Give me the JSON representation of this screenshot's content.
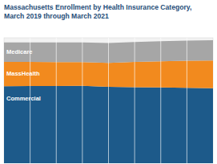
{
  "chart_data": {
    "type": "area",
    "title": "Massachusetts Enrollment by Health Insurance Category, March 2019 through March 2021",
    "stacked": true,
    "grid": true,
    "tick_labels": false,
    "categories": [
      null,
      null,
      null,
      null,
      null,
      null,
      null,
      null,
      null
    ],
    "ylim": [
      0,
      7.2
    ],
    "series": [
      {
        "name": "Commercial",
        "color": "#1d5a8a",
        "values": [
          4.42,
          4.43,
          4.43,
          4.44,
          4.38,
          4.36,
          4.35,
          4.33,
          4.3
        ]
      },
      {
        "name": "MassHealth",
        "color": "#f28a1e",
        "values": [
          1.4,
          1.38,
          1.37,
          1.36,
          1.38,
          1.45,
          1.5,
          1.55,
          1.6
        ]
      },
      {
        "name": "Medicare",
        "color": "#a6a6a6",
        "values": [
          1.12,
          1.13,
          1.13,
          1.14,
          1.14,
          1.15,
          1.15,
          1.16,
          1.16
        ]
      }
    ]
  }
}
